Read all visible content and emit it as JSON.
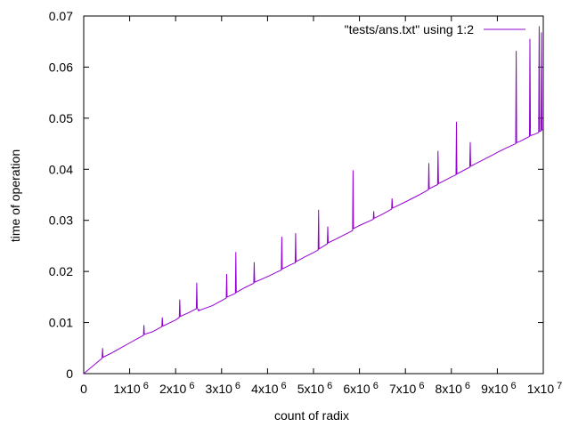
{
  "chart_data": {
    "type": "line",
    "title": "",
    "xlabel": "count of radix",
    "ylabel": "time of operation",
    "xlim": [
      0,
      10000000
    ],
    "ylim": [
      0,
      0.07
    ],
    "x_ticks": [
      {
        "value": 0,
        "mantissa": "0",
        "exp": ""
      },
      {
        "value": 1000000,
        "mantissa": "1x10",
        "exp": "6"
      },
      {
        "value": 2000000,
        "mantissa": "2x10",
        "exp": "6"
      },
      {
        "value": 3000000,
        "mantissa": "3x10",
        "exp": "6"
      },
      {
        "value": 4000000,
        "mantissa": "4x10",
        "exp": "6"
      },
      {
        "value": 5000000,
        "mantissa": "5x10",
        "exp": "6"
      },
      {
        "value": 6000000,
        "mantissa": "6x10",
        "exp": "6"
      },
      {
        "value": 7000000,
        "mantissa": "7x10",
        "exp": "6"
      },
      {
        "value": 8000000,
        "mantissa": "8x10",
        "exp": "6"
      },
      {
        "value": 9000000,
        "mantissa": "9x10",
        "exp": "6"
      },
      {
        "value": 10000000,
        "mantissa": "1x10",
        "exp": "7"
      }
    ],
    "y_ticks": [
      {
        "value": 0,
        "label": "0"
      },
      {
        "value": 0.01,
        "label": "0.01"
      },
      {
        "value": 0.02,
        "label": "0.02"
      },
      {
        "value": 0.03,
        "label": "0.03"
      },
      {
        "value": 0.04,
        "label": "0.04"
      },
      {
        "value": 0.05,
        "label": "0.05"
      },
      {
        "value": 0.06,
        "label": "0.06"
      },
      {
        "value": 0.07,
        "label": "0.07"
      }
    ],
    "grid": false,
    "legend_position": "top-right",
    "series": [
      {
        "name": "\"tests/ans.txt\" using 1:2",
        "color": "#9400d3",
        "x": [
          0,
          200000,
          400000,
          410000,
          420000,
          600000,
          1000000,
          1300000,
          1310000,
          1320000,
          1500000,
          1700000,
          1710000,
          1720000,
          2000000,
          2080000,
          2090000,
          2100000,
          2300000,
          2450000,
          2460000,
          2470000,
          2500000,
          2510000,
          2520000,
          2800000,
          3000000,
          3100000,
          3110000,
          3120000,
          3300000,
          3310000,
          3320000,
          3500000,
          3700000,
          3710000,
          3720000,
          4000000,
          4300000,
          4310000,
          4320000,
          4500000,
          4600000,
          4610000,
          4620000,
          4800000,
          5000000,
          5100000,
          5110000,
          5120000,
          5300000,
          5310000,
          5320000,
          5500000,
          5700000,
          5850000,
          5860000,
          5870000,
          6000000,
          6300000,
          6310000,
          6320000,
          6500000,
          6700000,
          6710000,
          6720000,
          7000000,
          7300000,
          7500000,
          7510000,
          7520000,
          7700000,
          7710000,
          7720000,
          8000000,
          8100000,
          8110000,
          8120000,
          8400000,
          8410000,
          8420000,
          8700000,
          8900000,
          9000000,
          9200000,
          9400000,
          9410000,
          9420000,
          9500000,
          9700000,
          9710000,
          9720000,
          9800000,
          9900000,
          9910000,
          9920000,
          9950000,
          9960000,
          9970000,
          10000000
        ],
        "y": [
          0,
          0.0015,
          0.003,
          0.005,
          0.0032,
          0.004,
          0.006,
          0.0075,
          0.0095,
          0.0077,
          0.0082,
          0.0092,
          0.011,
          0.0093,
          0.0105,
          0.011,
          0.0145,
          0.0112,
          0.012,
          0.0127,
          0.0178,
          0.0128,
          0.0123,
          0.0125,
          0.0124,
          0.0133,
          0.0143,
          0.0148,
          0.0195,
          0.015,
          0.0157,
          0.0238,
          0.0159,
          0.0168,
          0.0177,
          0.0218,
          0.0179,
          0.019,
          0.0203,
          0.0268,
          0.0205,
          0.0213,
          0.0217,
          0.0275,
          0.0219,
          0.0228,
          0.0237,
          0.0242,
          0.0321,
          0.0244,
          0.0254,
          0.0288,
          0.0256,
          0.0264,
          0.0273,
          0.028,
          0.0398,
          0.0284,
          0.029,
          0.0302,
          0.0318,
          0.0304,
          0.0312,
          0.0322,
          0.0343,
          0.0324,
          0.0336,
          0.035,
          0.036,
          0.0412,
          0.0362,
          0.037,
          0.0436,
          0.0372,
          0.0385,
          0.0389,
          0.0493,
          0.0391,
          0.0404,
          0.0453,
          0.0406,
          0.0419,
          0.0428,
          0.0433,
          0.0442,
          0.045,
          0.0632,
          0.0452,
          0.0455,
          0.0464,
          0.0655,
          0.0466,
          0.0468,
          0.0472,
          0.068,
          0.0474,
          0.0475,
          0.0668,
          0.0477,
          0.0478
        ]
      }
    ]
  }
}
